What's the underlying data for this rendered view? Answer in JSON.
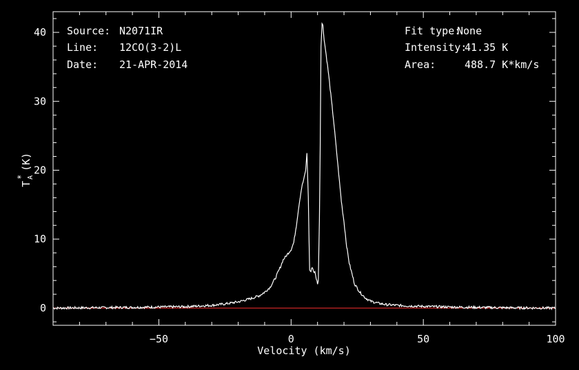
{
  "info_left": [
    {
      "key": "Source:",
      "value": "N2071IR"
    },
    {
      "key": "Line:",
      "value": "12CO(3-2)L"
    },
    {
      "key": "Date:",
      "value": "21-APR-2014"
    }
  ],
  "info_right": [
    {
      "key": "Fit type:",
      "value": "None"
    },
    {
      "key": "Intensity:",
      "value": "41.35 K"
    },
    {
      "key": "Area:",
      "value": "488.7 K*km/s"
    }
  ],
  "colors": {
    "background": "#000000",
    "spectrum": "#ffffff",
    "baseline": "#ff3030"
  },
  "chart_data": {
    "type": "line",
    "xlabel": "Velocity (km/s)",
    "ylabel_main": "T",
    "ylabel_sup": "*",
    "ylabel_sub": "A",
    "ylabel_unit": "(K)",
    "xlim": [
      -90,
      100
    ],
    "ylim": [
      -2.5,
      43
    ],
    "xticks": [
      -50,
      0,
      50,
      100
    ],
    "xticklabels": [
      "−50",
      "0",
      "50",
      "100"
    ],
    "yticks": [
      0,
      10,
      20,
      30,
      40
    ],
    "yticklabels": [
      "0",
      "10",
      "20",
      "30",
      "40"
    ],
    "baseline_y": 0,
    "series": [
      {
        "x": [
          -90,
          -60,
          -40,
          -30,
          -25,
          -20,
          -15,
          -12,
          -10,
          -8,
          -6,
          -4,
          -3,
          -2,
          -1,
          0,
          1,
          2,
          3,
          4,
          5,
          5.5,
          6,
          6.5,
          7,
          7.5,
          8,
          8.5,
          9,
          9.5,
          10,
          10.3,
          10.7,
          11,
          11.3,
          11.7,
          12,
          12.5,
          13,
          14,
          15,
          16,
          17,
          18,
          19,
          20,
          21,
          22,
          24,
          26,
          28,
          30,
          33,
          36,
          40,
          45,
          50,
          60,
          70,
          80,
          90,
          100
        ],
        "values": [
          0.0,
          0.1,
          0.2,
          0.4,
          0.6,
          0.9,
          1.4,
          1.8,
          2.3,
          3.0,
          4.3,
          6.0,
          7.0,
          7.5,
          8.0,
          8.5,
          9.5,
          12.0,
          15.0,
          17.5,
          19.0,
          20.0,
          22.5,
          16.0,
          5.5,
          5.3,
          6.0,
          5.3,
          5.2,
          4.3,
          3.6,
          4.0,
          13.0,
          23.0,
          38.0,
          41.3,
          41.0,
          39.0,
          37.5,
          34.5,
          31.0,
          27.5,
          23.5,
          19.5,
          15.5,
          12.5,
          9.0,
          6.5,
          3.5,
          2.3,
          1.5,
          1.0,
          0.7,
          0.5,
          0.4,
          0.3,
          0.25,
          0.15,
          0.1,
          0.05,
          0.02,
          0.0
        ]
      }
    ]
  }
}
